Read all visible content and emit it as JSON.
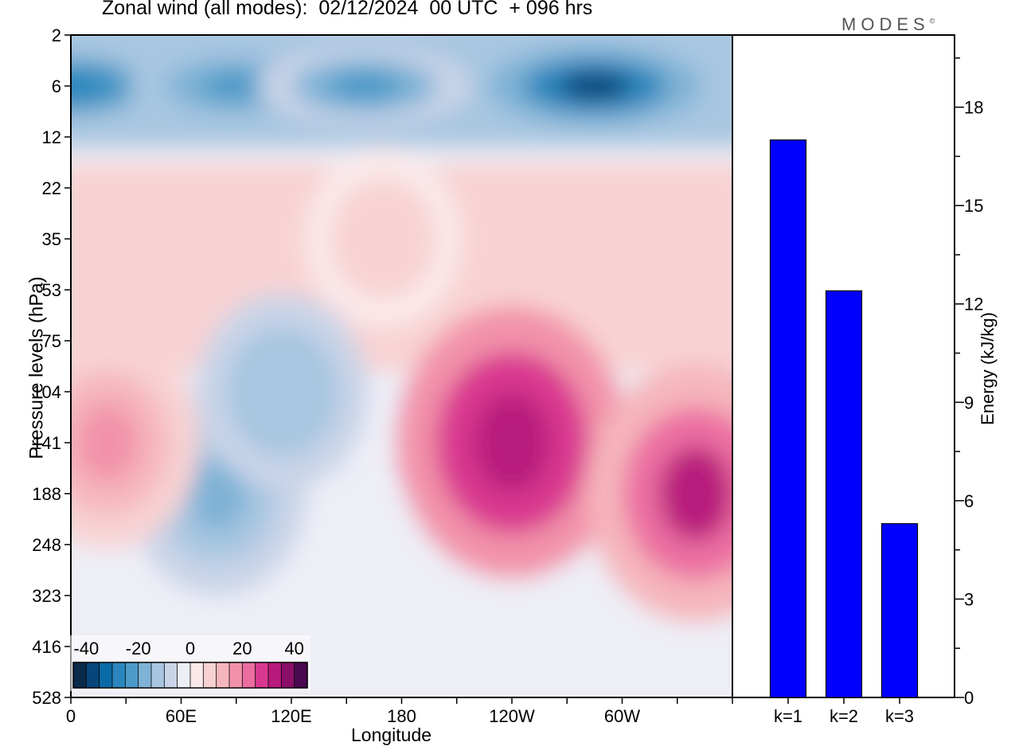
{
  "title": "Zonal wind (all modes):  02/12/2024  00 UTC  + 096 hrs",
  "brand": "MODES",
  "brand_mark": "©",
  "colors": {
    "bar": "#0000ff",
    "palette": [
      "#0b2a4a",
      "#07467a",
      "#0a6aa6",
      "#2a86bd",
      "#4b9ac8",
      "#7fb2d6",
      "#a8c6e0",
      "#c9d4e8",
      "#eeeef6",
      "#fbe9ea",
      "#f8d2d3",
      "#f5b5bc",
      "#f292aa",
      "#ec6ea1",
      "#d9388f",
      "#b81a7c",
      "#8c0f6a",
      "#4a0a4f"
    ]
  },
  "chart_data": [
    {
      "type": "heatmap",
      "xlabel": "Longitude",
      "ylabel": "Pressure levels (hPa)",
      "x_ticks": [
        "0",
        "60E",
        "120E",
        "180",
        "120W",
        "60W"
      ],
      "y_ticks": [
        "2",
        "6",
        "12",
        "22",
        "35",
        "53",
        "75",
        "104",
        "141",
        "188",
        "248",
        "323",
        "416",
        "528"
      ],
      "colorbar": {
        "ticks": [
          "-40",
          "-20",
          "0",
          "20",
          "40"
        ],
        "range": [
          -45,
          45
        ]
      },
      "features": [
        {
          "desc": "easterly band",
          "lon": 0,
          "level": "6",
          "value": -28
        },
        {
          "desc": "easterly band",
          "lon": 90,
          "level": "6",
          "value": -24
        },
        {
          "desc": "easterly band",
          "lon": 160,
          "level": "6",
          "value": -22
        },
        {
          "desc": "easterly core",
          "lon": 285,
          "level": "6",
          "value": -36
        },
        {
          "desc": "easterly tongue",
          "lon": 80,
          "level": "188",
          "value": -16
        },
        {
          "desc": "easterly tongue",
          "lon": 115,
          "level": "104",
          "value": -14
        },
        {
          "desc": "westerly jet",
          "lon": 20,
          "level": "141",
          "value": 18
        },
        {
          "desc": "westerly jet",
          "lon": 240,
          "level": "141",
          "value": 34
        },
        {
          "desc": "westerly jet",
          "lon": 340,
          "level": "188",
          "value": 30
        },
        {
          "desc": "westerly patch",
          "lon": 170,
          "level": "35",
          "value": 9
        }
      ]
    },
    {
      "type": "bar",
      "categories": [
        "k=1",
        "k=2",
        "k=3"
      ],
      "values": [
        17.0,
        12.4,
        5.3
      ],
      "ylabel": "Energy (kJ/kg)",
      "y_ticks": [
        "0",
        "3",
        "6",
        "9",
        "12",
        "15",
        "18"
      ],
      "ylim": [
        0,
        20.2
      ]
    }
  ]
}
